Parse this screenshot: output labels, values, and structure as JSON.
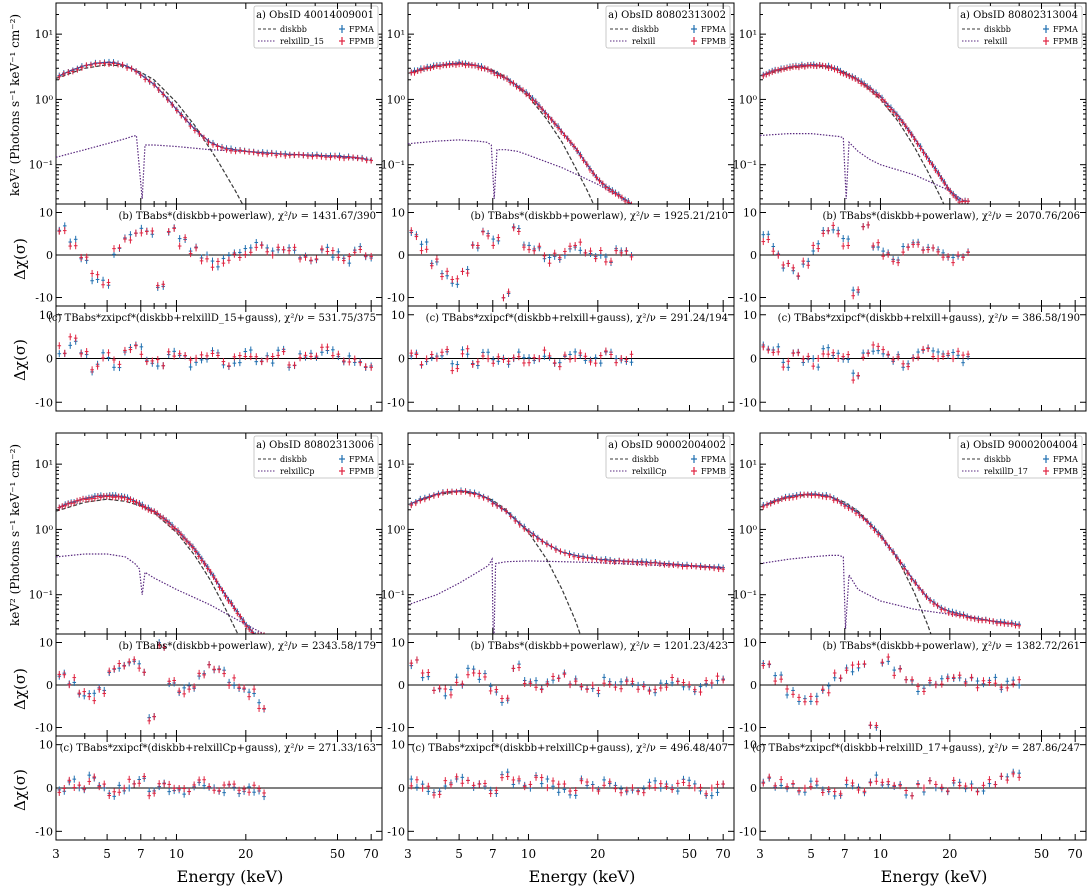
{
  "chart_data": {
    "type": "scatter",
    "x_axis": {
      "label": "Energy (keV)",
      "scale": "log",
      "range": [
        3,
        78
      ],
      "ticks": [
        3,
        5,
        7,
        10,
        20,
        50,
        70
      ],
      "tick_labels": [
        "3",
        "5",
        "7",
        "10",
        "20",
        "50",
        "70"
      ]
    },
    "spectrum_axis": {
      "label": "keV² (Photons s⁻¹ keV⁻¹ cm⁻²)",
      "scale": "log",
      "range": [
        0.025,
        30
      ],
      "ticks": [
        0.1,
        1,
        10
      ],
      "tick_labels": [
        "10⁻¹",
        "10⁰",
        "10¹"
      ]
    },
    "residual_axis": {
      "label": "Δχ(σ)",
      "range": [
        -12,
        12
      ],
      "ticks": [
        -10,
        0,
        10
      ],
      "tick_labels": [
        "-10",
        "0",
        "10"
      ]
    },
    "colors": {
      "FPMA": "#1f6fb0",
      "FPMB": "#e0223f",
      "disk": "#3a3a3a",
      "refl": "#5a2a80"
    },
    "panels": [
      {
        "obsid": "a) ObsID 40014009001",
        "legend": {
          "disk": "diskbb",
          "refl": "relxillD_15",
          "a": "FPMA",
          "b": "FPMB"
        },
        "resid_b": "(b) TBabs*(diskbb+powerlaw), χ²/ν = 1431.67/390",
        "resid_c": "(c) TBabs*zxipcf*(diskbb+relxillD_15+gauss), χ²/ν = 531.75/375",
        "spectrum_x": [
          3.1,
          3.5,
          4,
          4.5,
          5,
          5.5,
          6,
          6.5,
          7,
          8,
          9,
          10,
          12,
          14,
          16,
          18,
          20,
          25,
          30,
          40,
          50,
          60,
          68
        ],
        "spectrum_y": [
          2.3,
          2.8,
          3.3,
          3.6,
          3.7,
          3.6,
          3.3,
          2.9,
          2.4,
          1.7,
          1.1,
          0.7,
          0.35,
          0.22,
          0.18,
          0.17,
          0.16,
          0.15,
          0.145,
          0.14,
          0.135,
          0.13,
          0.12
        ],
        "disk_x": [
          3,
          4,
          5,
          6,
          7,
          8,
          10,
          12,
          15,
          18,
          20,
          22
        ],
        "disk_y": [
          2.1,
          3.0,
          3.4,
          3.2,
          2.6,
          2.0,
          0.9,
          0.4,
          0.12,
          0.04,
          0.02,
          0.01
        ],
        "refl_x": [
          3,
          4,
          5,
          6,
          6.4,
          6.7,
          7.1,
          7.3,
          8,
          10,
          14,
          20,
          30,
          50,
          70
        ],
        "refl_y": [
          0.13,
          0.17,
          0.21,
          0.25,
          0.27,
          0.28,
          0.03,
          0.2,
          0.2,
          0.19,
          0.17,
          0.16,
          0.145,
          0.13,
          0.12
        ],
        "xmax": 70,
        "resid_b_points": [
          6,
          3,
          -1,
          -5,
          -7,
          1,
          4,
          6,
          5,
          -7,
          6,
          3,
          1,
          -1,
          -2,
          -1,
          0,
          1,
          2,
          1,
          2,
          1,
          0,
          -1,
          1,
          0,
          -1,
          1,
          0
        ],
        "resid_c_points": [
          2,
          4,
          1,
          -2,
          1,
          -1,
          2,
          2,
          0,
          -1,
          1,
          0,
          -1,
          0,
          1,
          -1,
          0,
          1,
          0,
          0,
          1,
          -1,
          0,
          1,
          2,
          1,
          0,
          0,
          -1
        ]
      },
      {
        "obsid": "a) ObsID 80802313002",
        "legend": {
          "disk": "diskbb",
          "refl": "relxill",
          "a": "FPMA",
          "b": "FPMB"
        },
        "resid_b": "(b) TBabs*(diskbb+powerlaw), χ²/ν = 1925.21/210",
        "resid_c": "(c) TBabs*zxipcf*(diskbb+relxill+gauss), χ²/ν = 291.24/194",
        "spectrum_x": [
          3.1,
          3.5,
          4,
          4.5,
          5,
          5.5,
          6,
          6.5,
          7,
          8,
          9,
          10,
          12,
          14,
          16,
          18,
          20,
          22,
          25,
          28
        ],
        "spectrum_y": [
          2.6,
          3.0,
          3.3,
          3.5,
          3.6,
          3.5,
          3.3,
          3.0,
          2.7,
          2.1,
          1.6,
          1.2,
          0.6,
          0.32,
          0.18,
          0.1,
          0.06,
          0.045,
          0.033,
          0.025
        ],
        "disk_x": [
          3,
          4,
          5,
          6,
          7,
          8,
          10,
          12,
          14,
          16,
          18,
          20
        ],
        "disk_y": [
          2.5,
          3.2,
          3.5,
          3.3,
          2.8,
          2.2,
          1.1,
          0.5,
          0.22,
          0.09,
          0.04,
          0.018
        ],
        "refl_x": [
          3,
          4,
          5,
          6,
          6.6,
          6.9,
          7.1,
          7.3,
          8,
          9,
          10,
          14,
          20,
          28
        ],
        "refl_y": [
          0.21,
          0.23,
          0.24,
          0.23,
          0.22,
          0.2,
          0.03,
          0.17,
          0.17,
          0.16,
          0.14,
          0.09,
          0.05,
          0.025
        ],
        "xmax": 28,
        "resid_b_points": [
          5,
          2,
          -2,
          -4,
          -6,
          -4,
          2,
          5,
          3,
          -9,
          6,
          2,
          1,
          -1,
          0,
          1,
          2,
          1,
          0,
          -1,
          1,
          0
        ],
        "resid_c_points": [
          1,
          -1,
          0,
          1,
          -2,
          2,
          -1,
          1,
          0,
          -1,
          1,
          0,
          0,
          1,
          -1,
          0,
          1,
          0,
          0,
          1,
          0,
          0
        ]
      },
      {
        "obsid": "a) ObsID 80802313004",
        "legend": {
          "disk": "diskbb",
          "refl": "relxill",
          "a": "FPMA",
          "b": "FPMB"
        },
        "resid_b": "(b) TBabs*(diskbb+powerlaw), χ²/ν = 2070.76/206",
        "resid_c": "(c) TBabs*zxipcf*(diskbb+relxill+gauss), χ²/ν = 386.58/190",
        "spectrum_x": [
          3.1,
          3.5,
          4,
          4.5,
          5,
          5.5,
          6,
          6.5,
          7,
          8,
          9,
          10,
          12,
          14,
          16,
          18,
          20,
          22
        ],
        "spectrum_y": [
          2.4,
          2.8,
          3.1,
          3.3,
          3.4,
          3.35,
          3.2,
          2.9,
          2.5,
          2.0,
          1.5,
          1.1,
          0.55,
          0.26,
          0.13,
          0.07,
          0.04,
          0.028
        ],
        "disk_x": [
          3,
          4,
          5,
          6,
          7,
          8,
          10,
          12,
          14,
          16,
          18,
          20
        ],
        "disk_y": [
          2.3,
          3.0,
          3.3,
          3.1,
          2.6,
          2.0,
          1.0,
          0.45,
          0.19,
          0.08,
          0.035,
          0.016
        ],
        "refl_x": [
          3,
          4,
          5,
          6,
          6.6,
          6.9,
          7.1,
          7.3,
          8,
          9,
          10,
          14,
          20,
          24
        ],
        "refl_y": [
          0.28,
          0.3,
          0.3,
          0.28,
          0.27,
          0.26,
          0.03,
          0.22,
          0.16,
          0.12,
          0.1,
          0.07,
          0.04,
          0.025
        ],
        "xmax": 24,
        "resid_b_points": [
          4,
          1,
          -3,
          -4,
          -2,
          2,
          5,
          6,
          3,
          -9,
          7,
          2,
          0,
          -1,
          1,
          3,
          2,
          1,
          0,
          -1,
          0
        ],
        "resid_c_points": [
          3,
          2,
          -1,
          1,
          0,
          -1,
          2,
          1,
          0,
          -4,
          1,
          2,
          1,
          0,
          -1,
          1,
          2,
          1,
          0,
          1,
          0
        ]
      },
      {
        "obsid": "a) ObsID 80802313006",
        "legend": {
          "disk": "diskbb",
          "refl": "relxillCp",
          "a": "FPMA",
          "b": "FPMB"
        },
        "resid_b": "(b) TBabs*(diskbb+powerlaw), χ²/ν = 2343.58/179",
        "resid_c": "(c) TBabs*zxipcf*(diskbb+relxillCp+gauss), χ²/ν = 271.33/163",
        "spectrum_x": [
          3.1,
          3.5,
          4,
          4.5,
          5,
          5.5,
          6,
          6.5,
          7,
          8,
          9,
          10,
          12,
          14,
          16,
          18,
          20,
          22
        ],
        "spectrum_y": [
          2.2,
          2.6,
          3.0,
          3.2,
          3.3,
          3.25,
          3.1,
          2.8,
          2.4,
          1.9,
          1.4,
          1.0,
          0.5,
          0.23,
          0.11,
          0.06,
          0.035,
          0.024
        ],
        "disk_x": [
          3,
          4,
          5,
          6,
          7,
          8,
          10,
          12,
          14,
          16,
          18,
          20
        ],
        "disk_y": [
          1.9,
          2.6,
          2.9,
          2.7,
          2.3,
          1.8,
          0.9,
          0.4,
          0.17,
          0.07,
          0.03,
          0.014
        ],
        "refl_x": [
          3,
          4,
          5,
          6,
          6.6,
          6.9,
          7.1,
          7.3,
          8,
          10,
          14,
          20,
          24
        ],
        "refl_y": [
          0.38,
          0.42,
          0.42,
          0.38,
          0.3,
          0.25,
          0.1,
          0.22,
          0.18,
          0.12,
          0.07,
          0.035,
          0.025
        ],
        "xmax": 24,
        "resid_b_points": [
          3,
          1,
          -2,
          -3,
          -1,
          3,
          5,
          6,
          4,
          -8,
          9,
          1,
          -1,
          0,
          2,
          4,
          3,
          1,
          0,
          -2,
          -5
        ],
        "resid_c_points": [
          -1,
          1,
          0,
          2,
          1,
          -1,
          0,
          1,
          2,
          -1,
          1,
          0,
          -1,
          0,
          1,
          0,
          0,
          1,
          -1,
          0,
          -1
        ]
      },
      {
        "obsid": "a) ObsID 90002004002",
        "legend": {
          "disk": "diskbb",
          "refl": "relxillCp",
          "a": "FPMA",
          "b": "FPMB"
        },
        "resid_b": "(b) TBabs*(diskbb+powerlaw), χ²/ν = 1201.23/423",
        "resid_c": "(c) TBabs*zxipcf*(diskbb+relxillCp+gauss), χ²/ν = 496.48/407",
        "spectrum_x": [
          3.1,
          3.5,
          4,
          4.5,
          5,
          5.5,
          6,
          6.5,
          7,
          8,
          9,
          10,
          12,
          14,
          16,
          18,
          20,
          25,
          30,
          40,
          50,
          60,
          70
        ],
        "spectrum_y": [
          2.5,
          3.0,
          3.5,
          3.8,
          3.9,
          3.8,
          3.5,
          3.1,
          2.6,
          1.9,
          1.3,
          0.95,
          0.6,
          0.45,
          0.4,
          0.37,
          0.35,
          0.33,
          0.32,
          0.3,
          0.28,
          0.27,
          0.26
        ],
        "disk_x": [
          3,
          4,
          5,
          6,
          7,
          8,
          10,
          12,
          14,
          16,
          18
        ],
        "disk_y": [
          2.4,
          3.4,
          3.8,
          3.5,
          2.8,
          2.0,
          0.9,
          0.35,
          0.12,
          0.04,
          0.012
        ],
        "refl_x": [
          3,
          4,
          5,
          6,
          6.7,
          6.95,
          7.05,
          7.2,
          8,
          10,
          14,
          20,
          30,
          50,
          70
        ],
        "refl_y": [
          0.07,
          0.1,
          0.15,
          0.22,
          0.28,
          0.35,
          0.01,
          0.3,
          0.32,
          0.33,
          0.32,
          0.31,
          0.29,
          0.27,
          0.25
        ],
        "xmax": 70,
        "resid_b_points": [
          5,
          2,
          -1,
          -2,
          1,
          3,
          2,
          -1,
          -3,
          4,
          1,
          0,
          1,
          2,
          1,
          0,
          -1,
          1,
          0,
          1,
          0,
          -1,
          0,
          1,
          0,
          -1,
          0,
          1
        ],
        "resid_c_points": [
          1,
          0,
          -1,
          1,
          2,
          1,
          0,
          -1,
          3,
          1,
          0,
          2,
          1,
          0,
          -1,
          1,
          0,
          1,
          0,
          -1,
          0,
          1,
          0,
          0,
          1,
          0,
          -1,
          0
        ]
      },
      {
        "obsid": "a) ObsID 90002004004",
        "legend": {
          "disk": "diskbb",
          "refl": "relxillD_17",
          "a": "FPMA",
          "b": "FPMB"
        },
        "resid_b": "(b) TBabs*(diskbb+powerlaw), χ²/ν = 1382.72/261",
        "resid_c": "(c) TBabs*zxipcf*(diskbb+relxillD_17+gauss), χ²/ν = 287.86/247",
        "spectrum_x": [
          3.1,
          3.5,
          4,
          4.5,
          5,
          5.5,
          6,
          6.5,
          7,
          8,
          9,
          10,
          12,
          14,
          16,
          18,
          20,
          25,
          30,
          35,
          40
        ],
        "spectrum_y": [
          2.3,
          2.8,
          3.2,
          3.4,
          3.5,
          3.4,
          3.2,
          2.8,
          2.4,
          1.8,
          1.2,
          0.8,
          0.35,
          0.16,
          0.09,
          0.065,
          0.055,
          0.045,
          0.04,
          0.037,
          0.035
        ],
        "disk_x": [
          3,
          4,
          5,
          6,
          7,
          8,
          10,
          12,
          14,
          16,
          18,
          20
        ],
        "disk_y": [
          2.2,
          3.1,
          3.4,
          3.2,
          2.6,
          1.9,
          0.85,
          0.33,
          0.11,
          0.035,
          0.011,
          0.004
        ],
        "refl_x": [
          3,
          4,
          5,
          6,
          6.6,
          6.9,
          7.05,
          7.3,
          8,
          10,
          14,
          20,
          30,
          40
        ],
        "refl_y": [
          0.3,
          0.35,
          0.38,
          0.4,
          0.4,
          0.38,
          0.03,
          0.2,
          0.12,
          0.08,
          0.06,
          0.05,
          0.04,
          0.035
        ],
        "xmax": 40,
        "resid_b_points": [
          5,
          2,
          -2,
          -4,
          -3,
          -1,
          2,
          4,
          5,
          -9,
          6,
          3,
          1,
          -1,
          0,
          1,
          2,
          1,
          0,
          1,
          0,
          1
        ],
        "resid_c_points": [
          2,
          1,
          0,
          -1,
          1,
          0,
          -1,
          1,
          0,
          2,
          1,
          0,
          -1,
          0,
          1,
          0,
          1,
          0,
          0,
          1,
          2,
          3
        ]
      }
    ]
  }
}
